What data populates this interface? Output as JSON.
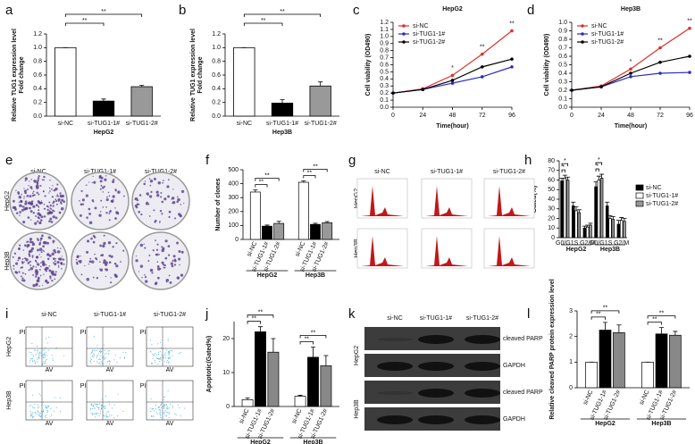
{
  "chart_data": [
    {
      "type": "bar",
      "label": "a",
      "ylabel": [
        "Relative TUG1 expression level",
        "Fold change"
      ],
      "xlabel": "HepG2",
      "categories": [
        "si-NC",
        "si-TUG1-1#",
        "si-TUG1-2#"
      ],
      "values": [
        1.0,
        0.22,
        0.43
      ],
      "errors": [
        0,
        0.03,
        0.02
      ],
      "colors": [
        "#ffffff",
        "#000000",
        "#999999"
      ],
      "ylim": [
        0,
        1.2
      ],
      "yticks": [
        {
          "value": 0,
          "label": "0.0"
        },
        {
          "value": 0.2,
          "label": "0.2"
        },
        {
          "value": 0.4,
          "label": "0.4"
        },
        {
          "value": 0.6,
          "label": "0.6"
        },
        {
          "value": 0.8,
          "label": "0.8"
        },
        {
          "value": 1.0,
          "label": "1.0"
        },
        {
          "value": 1.2,
          "label": "1.2"
        }
      ],
      "annotations": [
        "**",
        "**"
      ]
    },
    {
      "type": "bar",
      "label": "b",
      "ylabel": [
        "Relative TUG1 expression level",
        "Fold change"
      ],
      "xlabel": "Hep3B",
      "categories": [
        "si-NC",
        "si-TUG1-1#",
        "si-TUG1-2#"
      ],
      "values": [
        1.0,
        0.19,
        0.44
      ],
      "errors": [
        0,
        0.05,
        0.06
      ],
      "colors": [
        "#ffffff",
        "#000000",
        "#999999"
      ],
      "ylim": [
        0,
        1.2
      ],
      "yticks": [
        {
          "value": 0,
          "label": "0.0"
        },
        {
          "value": 0.2,
          "label": "0.2"
        },
        {
          "value": 0.4,
          "label": "0.4"
        },
        {
          "value": 0.6,
          "label": "0.6"
        },
        {
          "value": 0.8,
          "label": "0.8"
        },
        {
          "value": 1.0,
          "label": "1.0"
        },
        {
          "value": 1.2,
          "label": "1.2"
        }
      ],
      "annotations": [
        "**",
        "**"
      ]
    },
    {
      "type": "line",
      "label": "c",
      "title": "HepG2",
      "xlabel": "Time(hour)",
      "ylabel": [
        "Cell viability (OD490)"
      ],
      "x": [
        0,
        24,
        48,
        72,
        96
      ],
      "xlim": [
        0,
        96
      ],
      "xticks": [
        0,
        24,
        48,
        72,
        96
      ],
      "ylim": [
        0,
        1.2
      ],
      "yticks": [
        {
          "value": 0,
          "label": "0.0"
        },
        {
          "value": 0.1,
          "label": "0.1"
        },
        {
          "value": 0.2,
          "label": "0.2"
        },
        {
          "value": 0.3,
          "label": "0.3"
        },
        {
          "value": 0.4,
          "label": "0.4"
        },
        {
          "value": 0.5,
          "label": "0.5"
        },
        {
          "value": 0.6,
          "label": "0.6"
        },
        {
          "value": 0.7,
          "label": "0.7"
        },
        {
          "value": 0.8,
          "label": "0.8"
        },
        {
          "value": 0.9,
          "label": "0.9"
        },
        {
          "value": 1.0,
          "label": "1.0"
        },
        {
          "value": 1.1,
          "label": "1.1"
        },
        {
          "value": 1.2,
          "label": "1.2"
        }
      ],
      "series": [
        {
          "name": "si-NC",
          "color": "#e0302a",
          "values": [
            0.2,
            0.26,
            0.45,
            0.75,
            1.08
          ]
        },
        {
          "name": "si-TUG1-1#",
          "color": "#2b2bc8",
          "values": [
            0.2,
            0.25,
            0.34,
            0.43,
            0.57
          ]
        },
        {
          "name": "si-TUG1-2#",
          "color": "#000000",
          "values": [
            0.2,
            0.25,
            0.38,
            0.57,
            0.68
          ]
        }
      ],
      "annotations": [
        "*",
        "**",
        "**"
      ]
    },
    {
      "type": "line",
      "label": "d",
      "title": "Hep3B",
      "xlabel": "Time(hour)",
      "ylabel": [
        "Cell viability (OD490)"
      ],
      "x": [
        0,
        24,
        48,
        72,
        96
      ],
      "xlim": [
        0,
        96
      ],
      "xticks": [
        0,
        24,
        48,
        72,
        96
      ],
      "ylim": [
        0,
        1.0
      ],
      "yticks": [
        {
          "value": 0,
          "label": "0.0"
        },
        {
          "value": 0.1,
          "label": "0.1"
        },
        {
          "value": 0.2,
          "label": "0.2"
        },
        {
          "value": 0.3,
          "label": "0.3"
        },
        {
          "value": 0.4,
          "label": "0.4"
        },
        {
          "value": 0.5,
          "label": "0.5"
        },
        {
          "value": 0.6,
          "label": "0.6"
        },
        {
          "value": 0.7,
          "label": "0.7"
        },
        {
          "value": 0.8,
          "label": "0.8"
        },
        {
          "value": 0.9,
          "label": "0.9"
        },
        {
          "value": 1.0,
          "label": "1.0"
        }
      ],
      "series": [
        {
          "name": "si-NC",
          "color": "#e0302a",
          "values": [
            0.2,
            0.25,
            0.45,
            0.7,
            0.93
          ]
        },
        {
          "name": "si-TUG1-1#",
          "color": "#2b2bc8",
          "values": [
            0.2,
            0.24,
            0.36,
            0.4,
            0.41
          ]
        },
        {
          "name": "si-TUG1-2#",
          "color": "#000000",
          "values": [
            0.2,
            0.24,
            0.4,
            0.53,
            0.6
          ]
        }
      ],
      "annotations": [
        "*",
        "**",
        "**"
      ]
    },
    {
      "type": "grouped_bar",
      "label": "f",
      "ylabel": [
        "Number of clones"
      ],
      "groups": [
        "HepG2",
        "Hep3B"
      ],
      "ylim": [
        0,
        500
      ],
      "yticks": [
        0,
        100,
        200,
        300,
        400,
        500
      ],
      "series": [
        {
          "name": "si-NC",
          "color": "#ffffff",
          "values": [
            340,
            410
          ],
          "errors": [
            15,
            10
          ]
        },
        {
          "name": "si-TUG1-1#",
          "color": "#000000",
          "values": [
            95,
            108
          ],
          "errors": [
            8,
            8
          ]
        },
        {
          "name": "si-TUG1-2#",
          "color": "#999999",
          "values": [
            115,
            120
          ],
          "errors": [
            15,
            8
          ]
        }
      ],
      "annotations": [
        "**",
        "**",
        "**",
        "**"
      ]
    },
    {
      "type": "grouped_bar",
      "label": "h",
      "ylabel": [
        "Gated(%)"
      ],
      "legend": true,
      "categories": [
        "G0/G1",
        "S",
        "G2/M",
        "G0/G1",
        "S",
        "G2/M"
      ],
      "groups": [
        "HepG2",
        "Hep3B"
      ],
      "ylim": [
        0,
        80
      ],
      "yticks": [
        0,
        10,
        20,
        30,
        40,
        50,
        60,
        70,
        80
      ],
      "series": [
        {
          "name": "si-NC",
          "color": "#000000",
          "values": [
            59,
            33,
            10,
            53,
            33,
            14
          ],
          "errors": [
            3,
            4,
            2,
            5,
            4,
            4
          ]
        },
        {
          "name": "si-TUG1-1#",
          "color": "#ffffff",
          "values": [
            62,
            28,
            11,
            60,
            20,
            18
          ],
          "errors": [
            3,
            4,
            2,
            4,
            3,
            3
          ]
        },
        {
          "name": "si-TUG1-2#",
          "color": "#999999",
          "values": [
            60,
            26,
            13,
            62,
            19,
            17
          ],
          "errors": [
            3,
            3,
            2,
            4,
            3,
            3
          ]
        }
      ],
      "annotations": [
        "*",
        "*",
        "*",
        "*"
      ]
    },
    {
      "type": "grouped_bar",
      "label": "j",
      "ylabel": [
        "Apoptotic(Gated%)"
      ],
      "groups": [
        "HepG2",
        "Hep3B"
      ],
      "ylim": [
        0,
        25
      ],
      "yticks": [
        0,
        10,
        20
      ],
      "series": [
        {
          "name": "si-NC",
          "color": "#ffffff",
          "values": [
            2,
            3
          ],
          "errors": [
            0.5,
            0.3
          ]
        },
        {
          "name": "si-TUG1-1#",
          "color": "#000000",
          "values": [
            22,
            14.5
          ],
          "errors": [
            1.5,
            3
          ]
        },
        {
          "name": "si-TUG1-2#",
          "color": "#888888",
          "values": [
            16,
            12
          ],
          "errors": [
            4,
            3
          ]
        }
      ],
      "annotations": [
        "**",
        "**",
        "**",
        "**"
      ]
    },
    {
      "type": "grouped_bar",
      "label": "l",
      "ylabel": [
        "Relative cleaved PARP protein expression level"
      ],
      "groups": [
        "HepG2",
        "Hep3B"
      ],
      "ylim": [
        0,
        3
      ],
      "yticks": [
        0,
        1,
        2,
        3
      ],
      "series": [
        {
          "name": "si-NC",
          "color": "#ffffff",
          "values": [
            1,
            1
          ],
          "errors": [
            0,
            0
          ]
        },
        {
          "name": "si-TUG1-1#",
          "color": "#000000",
          "values": [
            2.25,
            2.1
          ],
          "errors": [
            0.3,
            0.25
          ]
        },
        {
          "name": "si-TUG1-2#",
          "color": "#888888",
          "values": [
            2.15,
            2.05
          ],
          "errors": [
            0.3,
            0.15
          ]
        }
      ],
      "annotations": [
        "**",
        "**",
        "**",
        "**"
      ]
    }
  ],
  "figures": [
    {
      "kind": "colony",
      "label": "e",
      "columns": [
        "si-NC",
        "si-TUG1-1#",
        "si-TUG1-2#"
      ],
      "rows": [
        "HepG2",
        "Hep3B"
      ]
    },
    {
      "kind": "cellcycle",
      "label": "g",
      "columns": [
        "si-NC",
        "si-TUG1-1#",
        "si-TUG1-2#"
      ],
      "rows": [
        "HepG2",
        "Hep3B"
      ]
    },
    {
      "kind": "flow",
      "label": "i",
      "columns": [
        "si-NC",
        "si-TUG1-1#",
        "si-TUG1-2#"
      ],
      "rows": [
        "HepG2",
        "Hep3B"
      ],
      "x_axis": "AV",
      "y_axis": "PI"
    },
    {
      "kind": "blot",
      "label": "k",
      "columns": [
        "si-NC",
        "si-TUG1-1#",
        "si-TUG1-2#"
      ],
      "rows": [
        "HepG2",
        "Hep3B"
      ],
      "bands": [
        "cleaved PARP",
        "GAPDH",
        "cleaved PARP",
        "GAPDH"
      ]
    }
  ]
}
